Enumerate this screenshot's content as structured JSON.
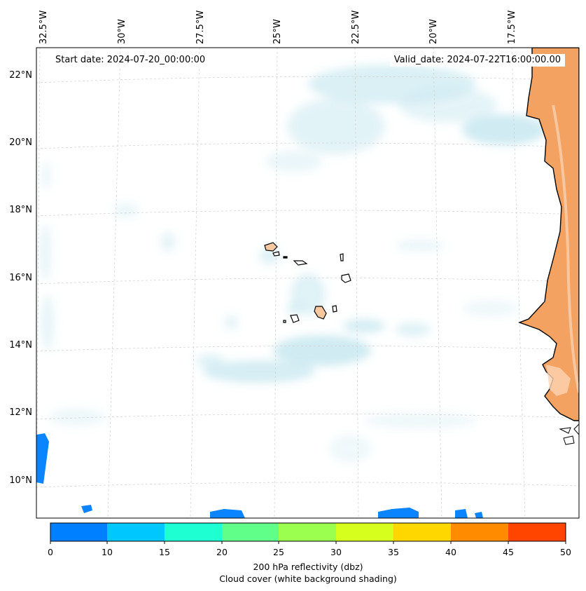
{
  "header": {
    "start_date": "Start date: 2024-07-20_00:00:00",
    "valid_date": "Valid_date: 2024-07-22T16:00:00.00"
  },
  "axes": {
    "longitude_labels": [
      "32.5°W",
      "30°W",
      "27.5°W",
      "25°W",
      "22.5°W",
      "20°W",
      "17.5°W"
    ],
    "latitude_labels": [
      "22°N",
      "20°N",
      "18°N",
      "16°N",
      "14°N",
      "12°N",
      "10°N"
    ]
  },
  "colorbar": {
    "ticks": [
      "0",
      "10",
      "15",
      "20",
      "25",
      "30",
      "35",
      "40",
      "45",
      "50"
    ],
    "colors": [
      "#0080ff",
      "#00c8ff",
      "#1effd2",
      "#5fff8a",
      "#9bff50",
      "#d7ff1e",
      "#ffd700",
      "#ff8c00",
      "#ff4500"
    ],
    "label_line1": "200 hPa reflectivity (dbz)",
    "label_line2": "Cloud cover (white background shading)"
  },
  "colors": {
    "land": "#f4a261",
    "land_light": "#f8c9a0",
    "cloud": "#a8dbe8",
    "reflectivity_low": "#0a84ff",
    "grid": "#cccccc"
  }
}
